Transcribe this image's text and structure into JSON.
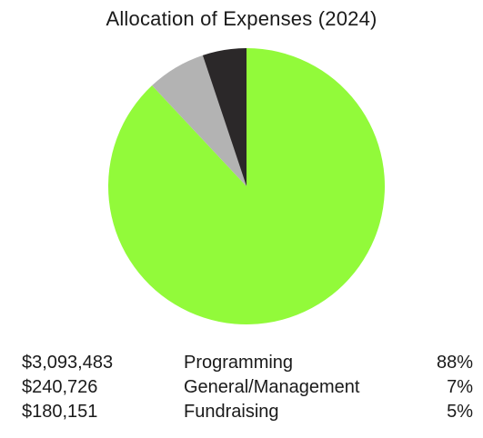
{
  "chart_data": {
    "type": "pie",
    "title": "Allocation of Expenses (2024)",
    "start_angle_deg": 0,
    "direction": "clockwise",
    "slices": [
      {
        "label": "Programming",
        "amount": "$3,093,483",
        "percent_label": "88%",
        "value": 3093483,
        "color": "#92fa3a"
      },
      {
        "label": "General/Management",
        "amount": "$240,726",
        "percent_label": "7%",
        "value": 240726,
        "color": "#b3b3b3"
      },
      {
        "label": "Fundraising",
        "amount": "$180,151",
        "percent_label": "5%",
        "value": 180151,
        "color": "#2b2829"
      }
    ]
  }
}
